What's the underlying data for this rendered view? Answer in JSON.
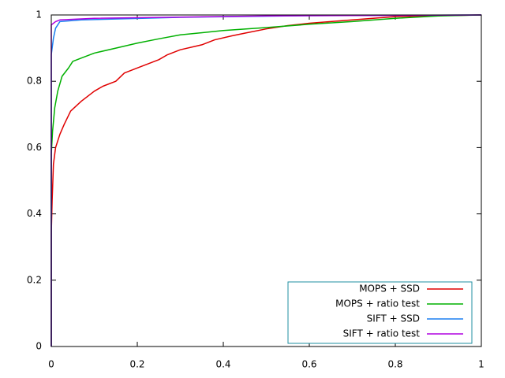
{
  "chart_data": {
    "type": "line",
    "xlim": [
      0,
      1
    ],
    "ylim": [
      0,
      1
    ],
    "xticks": [
      0,
      0.2,
      0.4,
      0.6,
      0.8,
      1
    ],
    "yticks": [
      0,
      0.2,
      0.4,
      0.6,
      0.8,
      1
    ],
    "legend": "bottom right",
    "series": [
      {
        "name": "MOPS + SSD",
        "color": "#e00000",
        "x": [
          0,
          0,
          0.002,
          0.005,
          0.01,
          0.02,
          0.03,
          0.045,
          0.07,
          0.1,
          0.12,
          0.15,
          0.17,
          0.2,
          0.25,
          0.27,
          0.3,
          0.35,
          0.38,
          0.42,
          0.45,
          0.5,
          0.55,
          0.6,
          0.7,
          0.8,
          0.9,
          1
        ],
        "values": [
          0,
          0.34,
          0.44,
          0.55,
          0.6,
          0.64,
          0.67,
          0.71,
          0.74,
          0.77,
          0.785,
          0.8,
          0.825,
          0.84,
          0.865,
          0.88,
          0.895,
          0.91,
          0.925,
          0.937,
          0.945,
          0.958,
          0.968,
          0.975,
          0.985,
          0.995,
          0.998,
          1
        ]
      },
      {
        "name": "MOPS + ratio test",
        "color": "#00b000",
        "x": [
          0,
          0,
          0.003,
          0.008,
          0.015,
          0.025,
          0.04,
          0.05,
          0.07,
          0.1,
          0.15,
          0.2,
          0.25,
          0.3,
          0.4,
          0.5,
          0.6,
          0.7,
          0.8,
          0.9,
          1
        ],
        "values": [
          0,
          0.58,
          0.65,
          0.72,
          0.77,
          0.815,
          0.84,
          0.86,
          0.87,
          0.885,
          0.9,
          0.915,
          0.928,
          0.94,
          0.953,
          0.962,
          0.972,
          0.98,
          0.99,
          0.997,
          1
        ]
      },
      {
        "name": "SIFT + SSD",
        "color": "#1a7ff0",
        "x": [
          0,
          0,
          0.005,
          0.01,
          0.02,
          0.07,
          0.3,
          0.6,
          1
        ],
        "values": [
          0,
          0.88,
          0.93,
          0.96,
          0.98,
          0.985,
          0.993,
          0.998,
          1
        ]
      },
      {
        "name": "SIFT + ratio test",
        "color": "#b000e0",
        "x": [
          0,
          0,
          0.01,
          0.02,
          0.1,
          0.5,
          1
        ],
        "values": [
          0,
          0.97,
          0.98,
          0.985,
          0.99,
          0.997,
          1
        ]
      }
    ]
  }
}
